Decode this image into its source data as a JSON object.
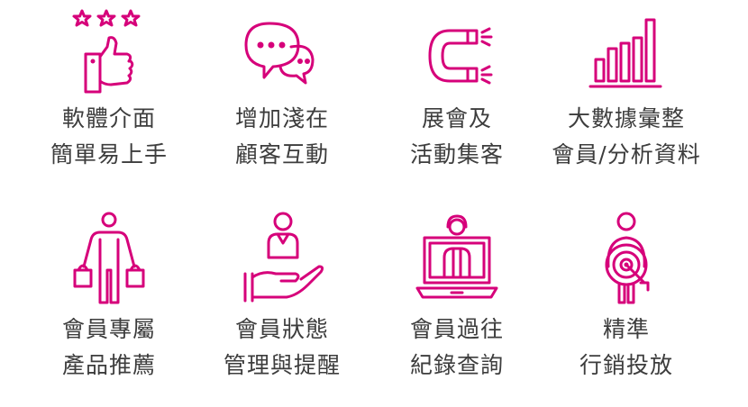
{
  "accent_color": "#d6007a",
  "features": [
    {
      "icon": "thumbs-up-stars-icon",
      "line1": "軟體介面",
      "line2": "簡單易上手"
    },
    {
      "icon": "chat-bubbles-icon",
      "line1": "增加淺在",
      "line2": "顧客互動"
    },
    {
      "icon": "magnet-icon",
      "line1": "展會及",
      "line2": "活動集客"
    },
    {
      "icon": "bar-chart-icon",
      "line1": "大數據彙整",
      "line2": "會員/分析資料"
    },
    {
      "icon": "shopper-bags-icon",
      "line1": "會員專屬",
      "line2": "產品推薦"
    },
    {
      "icon": "hand-holding-person-icon",
      "line1": "會員狀態",
      "line2": "管理與提醒"
    },
    {
      "icon": "laptop-agent-icon",
      "line1": "會員過往",
      "line2": "紀錄查詢"
    },
    {
      "icon": "person-target-icon",
      "line1": "精準",
      "line2": "行銷投放"
    }
  ]
}
